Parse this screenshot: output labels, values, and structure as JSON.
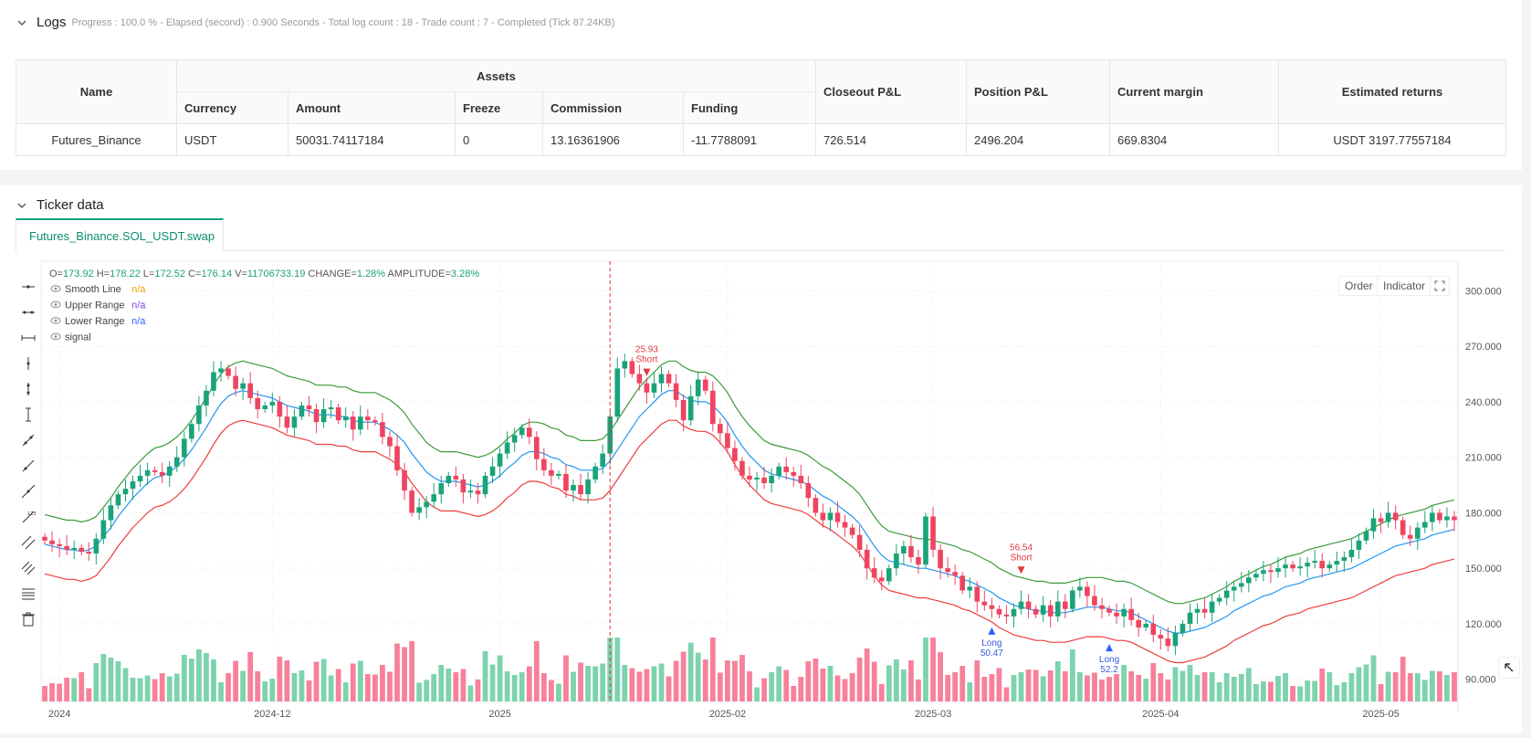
{
  "logs": {
    "title": "Logs",
    "meta": "Progress : 100.0 % - Elapsed (second) : 0.900  Seconds - Total log count : 18 - Trade count : 7 - Completed (Tick 87.24KB)",
    "table": {
      "h_name": "Name",
      "h_assets": "Assets",
      "h_closeout": "Closeout P&L",
      "h_position": "Position P&L",
      "h_margin": "Current margin",
      "h_returns": "Estimated returns",
      "sub": [
        "Currency",
        "Amount",
        "Freeze",
        "Commission",
        "Funding"
      ],
      "row": {
        "name": "Futures_Binance",
        "currency": "USDT",
        "amount": "50031.74117184",
        "freeze": "0",
        "commission": "13.16361906",
        "funding": "-11.7788091",
        "closeout": "726.514",
        "position": "2496.204",
        "margin": "669.8304",
        "returns": "USDT 3197.77557184"
      }
    }
  },
  "ticker": {
    "title": "Ticker data",
    "tab": "Futures_Binance.SOL_USDT.swap",
    "buttons": {
      "order": "Order",
      "indicator": "Indicator"
    },
    "ohlc": {
      "o_label": "O=",
      "o": "173.92",
      "h_label": "H=",
      "h": "178.22",
      "l_label": "L=",
      "l": "172.52",
      "c_label": "C=",
      "c": "176.14",
      "v_label": "V=",
      "v": "11706733.19",
      "change_label": "CHANGE=",
      "change": "1.28%",
      "amp_label": "AMPLITUDE=",
      "amp": "3.28%"
    },
    "legend": [
      {
        "name": "Smooth Line",
        "value": "n/a",
        "color": "#f0a000"
      },
      {
        "name": "Upper Range",
        "value": "n/a",
        "color": "#7b3fe4"
      },
      {
        "name": "Lower Range",
        "value": "n/a",
        "color": "#2962ff"
      },
      {
        "name": "signal",
        "value": "",
        "color": "#333"
      }
    ]
  },
  "chart_data": {
    "type": "candlestick",
    "y_ticks": [
      "300.000",
      "270.000",
      "240.000",
      "210.000",
      "180.000",
      "150.000",
      "120.000",
      "90.000"
    ],
    "ylim": [
      78,
      315
    ],
    "x_ticks": [
      {
        "label": "2024",
        "i": 2
      },
      {
        "label": "2024-12",
        "i": 31
      },
      {
        "label": "2025",
        "i": 62
      },
      {
        "label": "2025-02",
        "i": 93
      },
      {
        "label": "2025-03",
        "i": 121
      },
      {
        "label": "2025-04",
        "i": 152
      },
      {
        "label": "2025-05",
        "i": 182
      }
    ],
    "closes": [
      165,
      163,
      162,
      160,
      161,
      159,
      158,
      166,
      176,
      184,
      190,
      193,
      197,
      200,
      203,
      202,
      200,
      205,
      210,
      220,
      228,
      238,
      246,
      256,
      258,
      254,
      247,
      250,
      242,
      236,
      238,
      240,
      232,
      226,
      232,
      238,
      236,
      229,
      236,
      237,
      230,
      232,
      225,
      232,
      230,
      229,
      221,
      216,
      203,
      192,
      180,
      183,
      186,
      190,
      196,
      200,
      198,
      191,
      192,
      190,
      200,
      205,
      212,
      218,
      222,
      226,
      221,
      209,
      203,
      200,
      201,
      192,
      195,
      190,
      198,
      205,
      212,
      232,
      258,
      262,
      255,
      250,
      245,
      250,
      255,
      250,
      241,
      230,
      243,
      252,
      246,
      228,
      223,
      215,
      208,
      200,
      198,
      199,
      196,
      200,
      205,
      202,
      200,
      196,
      188,
      180,
      176,
      180,
      175,
      172,
      168,
      160,
      150,
      145,
      143,
      150,
      158,
      162,
      156,
      152,
      178,
      160,
      150,
      148,
      146,
      138,
      140,
      132,
      130,
      128,
      125,
      124,
      128,
      132,
      128,
      125,
      130,
      124,
      132,
      128,
      138,
      140,
      135,
      130,
      128,
      126,
      124,
      128,
      122,
      118,
      120,
      114,
      112,
      108,
      115,
      120,
      126,
      128,
      126,
      132,
      134,
      138,
      140,
      142,
      145,
      147,
      149,
      148,
      150,
      152,
      150,
      151,
      153,
      154,
      150,
      152,
      154,
      156,
      160,
      165,
      170,
      177,
      175,
      180,
      176,
      168,
      166,
      172,
      175,
      180,
      176,
      178,
      176
    ],
    "smooth": [
      163,
      162,
      161,
      160,
      160,
      159,
      160,
      162,
      167,
      172,
      178,
      183,
      188,
      192,
      196,
      199,
      200,
      202,
      205,
      209,
      214,
      220,
      226,
      233,
      239,
      243,
      245,
      246,
      245,
      244,
      243,
      242,
      240,
      238,
      237,
      236,
      235,
      233,
      233,
      233,
      232,
      232,
      230,
      229,
      229,
      229,
      227,
      225,
      222,
      218,
      212,
      207,
      202,
      199,
      197,
      197,
      197,
      196,
      195,
      194,
      195,
      197,
      200,
      204,
      207,
      211,
      213,
      213,
      212,
      210,
      209,
      206,
      205,
      203,
      203,
      203,
      204,
      208,
      214,
      220,
      226,
      232,
      236,
      240,
      244,
      246,
      246,
      243,
      241,
      240,
      240,
      238,
      234,
      229,
      222,
      216,
      211,
      207,
      203,
      201,
      200,
      199,
      198,
      197,
      195,
      192,
      189,
      187,
      184,
      181,
      178,
      174,
      168,
      162,
      157,
      154,
      153,
      152,
      151,
      150,
      150,
      149,
      148,
      147,
      146,
      144,
      143,
      141,
      139,
      137,
      134,
      132,
      130,
      129,
      128,
      127,
      127,
      126,
      126,
      126,
      127,
      128,
      129,
      129,
      129,
      128,
      127,
      127,
      126,
      124,
      122,
      120,
      118,
      116,
      115,
      115,
      116,
      117,
      118,
      120,
      122,
      124,
      127,
      129,
      131,
      133,
      135,
      136,
      138,
      140,
      141,
      142,
      144,
      145,
      146,
      147,
      148,
      149,
      150,
      152,
      154,
      156,
      158,
      160,
      162,
      163,
      164,
      165,
      166,
      168,
      169,
      170,
      171
    ],
    "upper": [
      179,
      178,
      177,
      176,
      176,
      175,
      176,
      178,
      183,
      188,
      194,
      199,
      204,
      208,
      212,
      215,
      216,
      218,
      221,
      225,
      230,
      236,
      242,
      249,
      255,
      259,
      261,
      262,
      261,
      260,
      259,
      258,
      256,
      254,
      253,
      252,
      251,
      249,
      249,
      249,
      248,
      248,
      246,
      245,
      245,
      245,
      243,
      241,
      238,
      234,
      228,
      223,
      218,
      215,
      213,
      213,
      213,
      212,
      211,
      210,
      211,
      213,
      216,
      220,
      223,
      227,
      229,
      229,
      228,
      226,
      225,
      222,
      221,
      219,
      219,
      219,
      220,
      224,
      230,
      236,
      242,
      248,
      252,
      256,
      260,
      262,
      262,
      259,
      257,
      256,
      256,
      254,
      250,
      245,
      238,
      232,
      227,
      223,
      219,
      217,
      216,
      215,
      214,
      213,
      211,
      208,
      205,
      203,
      200,
      197,
      194,
      190,
      184,
      178,
      173,
      170,
      169,
      168,
      167,
      166,
      166,
      165,
      164,
      163,
      162,
      160,
      159,
      157,
      155,
      153,
      150,
      148,
      146,
      145,
      144,
      143,
      143,
      142,
      142,
      142,
      143,
      144,
      145,
      145,
      145,
      144,
      143,
      143,
      142,
      140,
      138,
      136,
      134,
      132,
      131,
      131,
      132,
      133,
      134,
      136,
      138,
      140,
      143,
      145,
      147,
      149,
      151,
      152,
      154,
      156,
      157,
      158,
      160,
      161,
      162,
      163,
      164,
      165,
      166,
      168,
      170,
      172,
      174,
      176,
      178,
      179,
      180,
      181,
      182,
      184,
      185,
      186,
      187
    ],
    "lower": [
      147,
      146,
      145,
      144,
      144,
      143,
      144,
      146,
      151,
      156,
      162,
      167,
      172,
      176,
      180,
      183,
      184,
      186,
      189,
      193,
      198,
      204,
      210,
      217,
      223,
      227,
      229,
      230,
      229,
      228,
      227,
      226,
      224,
      222,
      221,
      220,
      219,
      217,
      217,
      217,
      216,
      216,
      214,
      213,
      213,
      213,
      211,
      209,
      206,
      202,
      196,
      191,
      186,
      183,
      181,
      181,
      181,
      180,
      179,
      178,
      179,
      181,
      184,
      188,
      191,
      195,
      197,
      197,
      196,
      194,
      193,
      190,
      189,
      187,
      187,
      187,
      188,
      192,
      198,
      204,
      210,
      216,
      220,
      224,
      228,
      230,
      230,
      227,
      225,
      224,
      224,
      222,
      218,
      213,
      206,
      200,
      195,
      191,
      187,
      185,
      184,
      183,
      182,
      181,
      179,
      176,
      173,
      171,
      168,
      165,
      162,
      158,
      152,
      146,
      141,
      138,
      137,
      136,
      135,
      134,
      134,
      133,
      132,
      131,
      130,
      128,
      127,
      125,
      123,
      121,
      118,
      116,
      114,
      113,
      112,
      111,
      111,
      110,
      110,
      110,
      111,
      112,
      113,
      113,
      113,
      112,
      111,
      111,
      110,
      108,
      106,
      104,
      102,
      100,
      99,
      99,
      100,
      101,
      102,
      104,
      106,
      108,
      111,
      113,
      115,
      117,
      119,
      120,
      122,
      124,
      125,
      126,
      128,
      129,
      130,
      131,
      132,
      133,
      134,
      136,
      138,
      140,
      142,
      144,
      146,
      147,
      148,
      149,
      150,
      152,
      153,
      154,
      155
    ],
    "signals": [
      {
        "type": "short",
        "i": 82,
        "price_label": "25.93",
        "label": "Short"
      },
      {
        "type": "long",
        "i": 129,
        "price_label": "50.47",
        "label": "Long"
      },
      {
        "type": "short",
        "i": 133,
        "price_label": "56.54",
        "label": "Short"
      },
      {
        "type": "long",
        "i": 145,
        "price_label": "52.2",
        "label": "Long"
      }
    ],
    "crosshair_i": 77
  }
}
